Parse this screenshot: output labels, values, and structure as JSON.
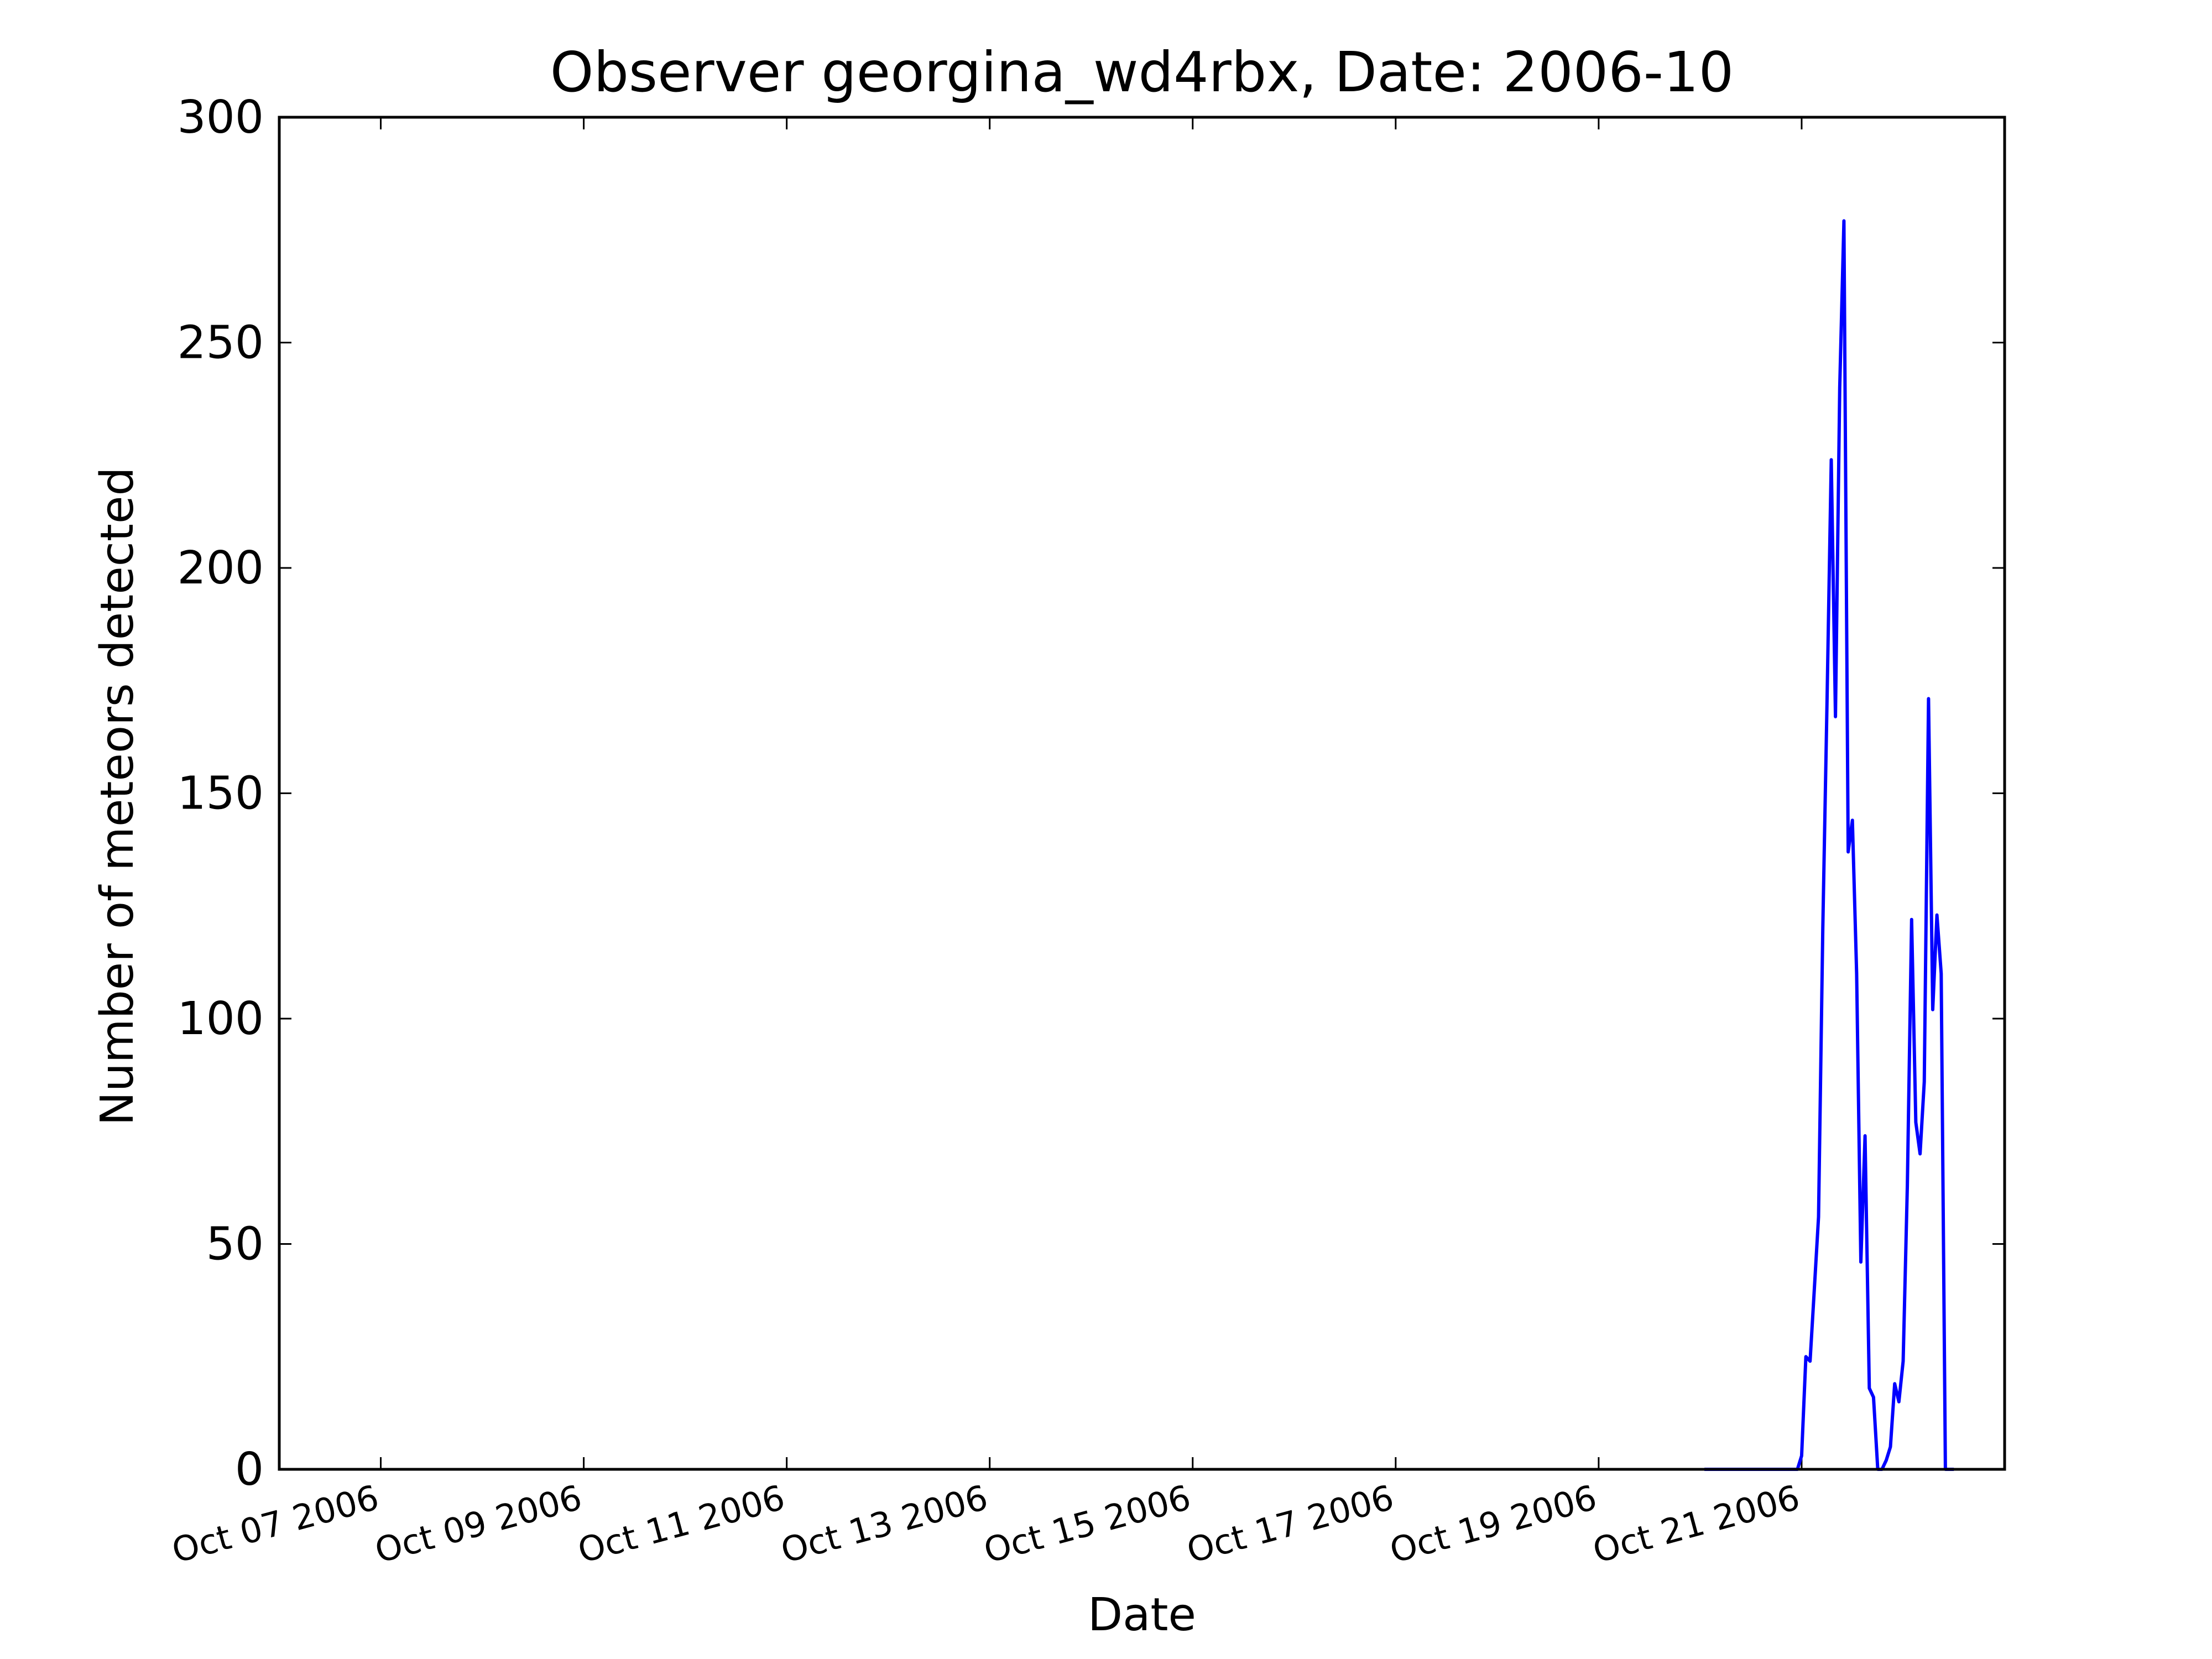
{
  "chart_data": {
    "type": "line",
    "title": "Observer georgina_wd4rbx, Date: 2006-10",
    "xlabel": "Date",
    "ylabel": "Number of meteors detected",
    "xlim": [
      "2006-10-06 00:00",
      "2006-10-23 00:00"
    ],
    "ylim": [
      0,
      300
    ],
    "x_ticks": [
      "2006-10-07",
      "2006-10-09",
      "2006-10-11",
      "2006-10-13",
      "2006-10-15",
      "2006-10-17",
      "2006-10-19",
      "2006-10-21"
    ],
    "x_tick_labels": [
      "Oct 07 2006",
      "Oct 09 2006",
      "Oct 11 2006",
      "Oct 13 2006",
      "Oct 15 2006",
      "Oct 17 2006",
      "Oct 19 2006",
      "Oct 21 2006"
    ],
    "y_ticks": [
      0,
      50,
      100,
      150,
      200,
      250,
      300
    ],
    "y_tick_labels": [
      "0",
      "50",
      "100",
      "150",
      "200",
      "250",
      "300"
    ],
    "grid": false,
    "line_color": "#0000ff",
    "series": [
      {
        "x": [
          "2006-10-20 01:00",
          "2006-10-20 20:00",
          "2006-10-20 21:00",
          "2006-10-20 22:00",
          "2006-10-20 23:00",
          "2006-10-21 00:00",
          "2006-10-21 01:00",
          "2006-10-21 02:00",
          "2006-10-21 03:00",
          "2006-10-21 04:00",
          "2006-10-21 05:00",
          "2006-10-21 06:00",
          "2006-10-21 07:00",
          "2006-10-21 08:00",
          "2006-10-21 09:00",
          "2006-10-21 10:00",
          "2006-10-21 11:00",
          "2006-10-21 12:00",
          "2006-10-21 13:00",
          "2006-10-21 14:00",
          "2006-10-21 15:00",
          "2006-10-21 16:00",
          "2006-10-21 17:00",
          "2006-10-21 18:00",
          "2006-10-21 19:00",
          "2006-10-21 20:00",
          "2006-10-21 21:00",
          "2006-10-21 22:00",
          "2006-10-21 23:00",
          "2006-10-22 00:00",
          "2006-10-22 01:00",
          "2006-10-22 02:00",
          "2006-10-22 03:00",
          "2006-10-22 04:00",
          "2006-10-22 05:00",
          "2006-10-22 06:00",
          "2006-10-22 07:00",
          "2006-10-22 08:00",
          "2006-10-22 09:00",
          "2006-10-22 10:00",
          "2006-10-22 11:00",
          "2006-10-22 12:00"
        ],
        "values": [
          0,
          0,
          0,
          0,
          0,
          3,
          25,
          24,
          40,
          56,
          120,
          170,
          224,
          167,
          240,
          277,
          137,
          144,
          110,
          46,
          74,
          18,
          16,
          0,
          0,
          2,
          5,
          19,
          15,
          24,
          63,
          122,
          77,
          70,
          86,
          171,
          102,
          123,
          110,
          0,
          0,
          0
        ]
      }
    ]
  }
}
